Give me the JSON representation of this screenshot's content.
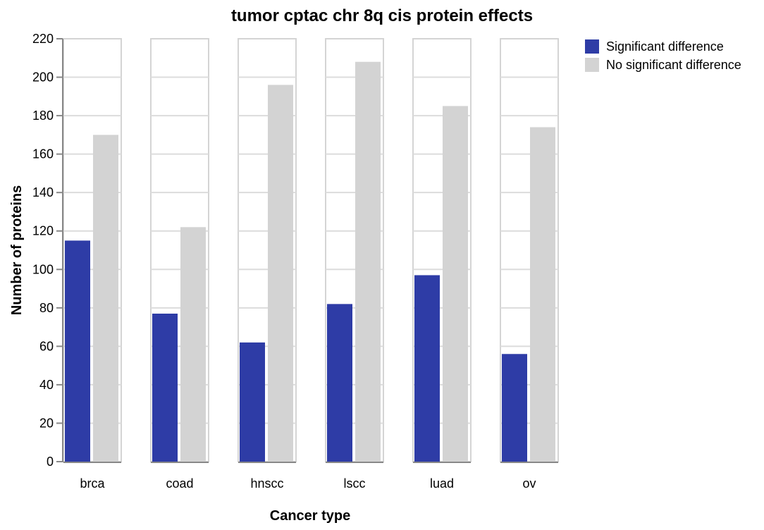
{
  "chart_data": {
    "type": "bar",
    "title": "tumor cptac chr 8q cis protein effects",
    "xlabel": "Cancer type",
    "ylabel": "Number of proteins",
    "categories": [
      "brca",
      "coad",
      "hnscc",
      "lscc",
      "luad",
      "ov"
    ],
    "series": [
      {
        "name": "Significant difference",
        "color": "#2e3ca6",
        "values": [
          115,
          77,
          62,
          82,
          97,
          56
        ]
      },
      {
        "name": "No significant difference",
        "color": "#d3d3d3",
        "values": [
          170,
          122,
          196,
          208,
          185,
          174
        ]
      }
    ],
    "ylim": [
      0,
      220
    ],
    "yticks": [
      0,
      20,
      40,
      60,
      80,
      100,
      120,
      140,
      160,
      180,
      200,
      220
    ],
    "grid": true,
    "legend": "top-right"
  }
}
